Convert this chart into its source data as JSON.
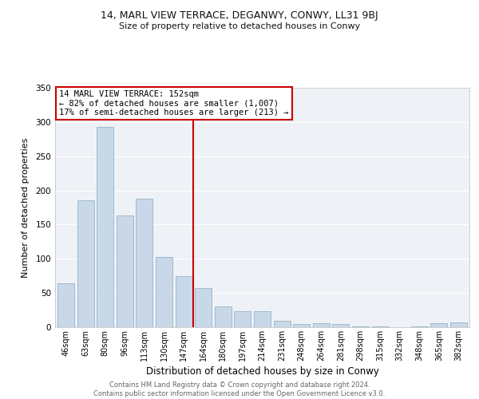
{
  "title1": "14, MARL VIEW TERRACE, DEGANWY, CONWY, LL31 9BJ",
  "title2": "Size of property relative to detached houses in Conwy",
  "xlabel": "Distribution of detached houses by size in Conwy",
  "ylabel": "Number of detached properties",
  "bar_labels": [
    "46sqm",
    "63sqm",
    "80sqm",
    "96sqm",
    "113sqm",
    "130sqm",
    "147sqm",
    "164sqm",
    "180sqm",
    "197sqm",
    "214sqm",
    "231sqm",
    "248sqm",
    "264sqm",
    "281sqm",
    "298sqm",
    "315sqm",
    "332sqm",
    "348sqm",
    "365sqm",
    "382sqm"
  ],
  "bar_values": [
    64,
    185,
    293,
    163,
    188,
    103,
    75,
    57,
    30,
    23,
    23,
    9,
    5,
    6,
    5,
    1,
    1,
    0,
    1,
    6,
    7
  ],
  "bar_color": "#c8d8e8",
  "bar_edge_color": "#a0b8cc",
  "vline_color": "#cc0000",
  "vline_index": 6.5,
  "annotation_title": "14 MARL VIEW TERRACE: 152sqm",
  "annotation_line1": "← 82% of detached houses are smaller (1,007)",
  "annotation_line2": "17% of semi-detached houses are larger (213) →",
  "annotation_box_color": "#ffffff",
  "annotation_box_edge": "#cc0000",
  "ylim": [
    0,
    350
  ],
  "yticks": [
    0,
    50,
    100,
    150,
    200,
    250,
    300,
    350
  ],
  "footer1": "Contains HM Land Registry data © Crown copyright and database right 2024.",
  "footer2": "Contains public sector information licensed under the Open Government Licence v3.0.",
  "bg_color": "#ffffff",
  "plot_bg_color": "#eef2f7",
  "grid_color": "#ffffff"
}
